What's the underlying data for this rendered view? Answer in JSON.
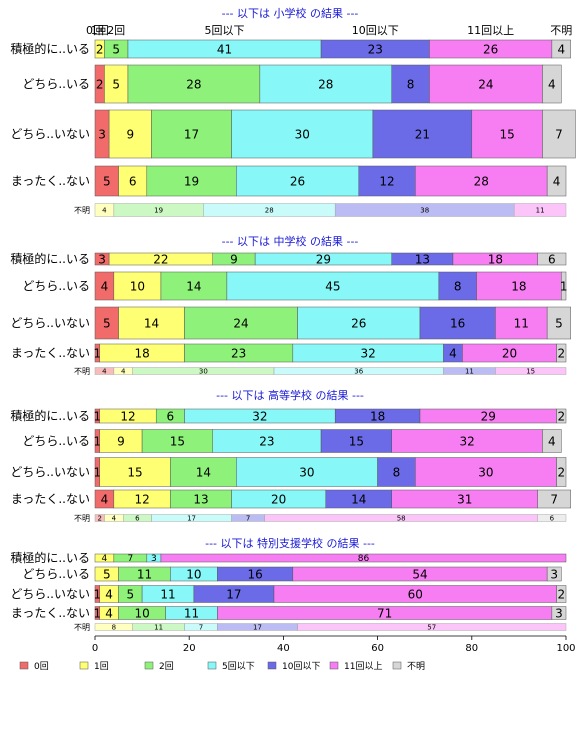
{
  "chart_data": {
    "type": "bar",
    "orientation": "horizontal-stacked",
    "xlim": [
      0,
      100
    ],
    "xticks": [
      "0",
      "20",
      "40",
      "60",
      "80",
      "100"
    ],
    "categories": [
      "0回",
      "1回",
      "2回",
      "5回以下",
      "10回以下",
      "11回以上",
      "不明"
    ],
    "colors": [
      "#f26b6b",
      "#ffff73",
      "#8ef27a",
      "#87f7f7",
      "#6b6be8",
      "#f77ef2",
      "#d6d6d6"
    ],
    "top_category_labels": [
      "0回",
      "1回",
      "2回",
      "5回以下",
      "10回以下",
      "11回以上",
      "不明"
    ],
    "panels": [
      {
        "title": "--- 以下は 小学校 の結果 ---",
        "rows": [
          {
            "label": "積極的に..いる",
            "values": [
              0,
              2,
              5,
              41,
              23,
              26,
              4
            ]
          },
          {
            "label": "どちら..いる",
            "values": [
              2,
              5,
              28,
              28,
              8,
              24,
              4
            ]
          },
          {
            "label": "どちら..いない",
            "values": [
              3,
              9,
              17,
              30,
              21,
              15,
              7
            ]
          },
          {
            "label": "まったく..ない",
            "values": [
              5,
              6,
              19,
              26,
              12,
              28,
              4
            ]
          },
          {
            "label": "不明",
            "small": true,
            "values": [
              0,
              4,
              19,
              28,
              38,
              11,
              0
            ]
          }
        ]
      },
      {
        "title": "--- 以下は 中学校 の結果 ---",
        "rows": [
          {
            "label": "積極的に..いる",
            "values": [
              3,
              22,
              9,
              29,
              13,
              18,
              6
            ]
          },
          {
            "label": "どちら..いる",
            "values": [
              4,
              10,
              14,
              45,
              8,
              18,
              1
            ]
          },
          {
            "label": "どちら..いない",
            "values": [
              5,
              14,
              24,
              26,
              16,
              11,
              5
            ]
          },
          {
            "label": "まったく..ない",
            "values": [
              1,
              18,
              23,
              32,
              4,
              20,
              2
            ]
          },
          {
            "label": "不明",
            "small": true,
            "values": [
              4,
              4,
              30,
              36,
              11,
              15,
              0
            ]
          }
        ]
      },
      {
        "title": "--- 以下は 高等学校 の結果 ---",
        "rows": [
          {
            "label": "積極的に..いる",
            "values": [
              1,
              12,
              6,
              32,
              18,
              29,
              2
            ]
          },
          {
            "label": "どちら..いる",
            "values": [
              1,
              9,
              15,
              23,
              15,
              32,
              4
            ]
          },
          {
            "label": "どちら..いない",
            "values": [
              1,
              15,
              14,
              30,
              8,
              30,
              2
            ]
          },
          {
            "label": "まったく..ない",
            "values": [
              4,
              12,
              13,
              20,
              14,
              31,
              7
            ]
          },
          {
            "label": "不明",
            "small": true,
            "values": [
              2,
              4,
              6,
              17,
              7,
              58,
              6
            ]
          }
        ]
      },
      {
        "title": "--- 以下は 特別支援学校 の結果 ---",
        "rows": [
          {
            "label": "積極的に..いる",
            "values": [
              0,
              4,
              7,
              3,
              0,
              86,
              0
            ]
          },
          {
            "label": "どちら..いる",
            "values": [
              0,
              5,
              11,
              10,
              16,
              54,
              3
            ]
          },
          {
            "label": "どちら..いない",
            "values": [
              1,
              4,
              5,
              11,
              17,
              60,
              2
            ]
          },
          {
            "label": "まったく..ない",
            "values": [
              1,
              4,
              10,
              11,
              0,
              71,
              3
            ]
          },
          {
            "label": "不明",
            "small": true,
            "values": [
              0,
              8,
              11,
              7,
              17,
              57,
              0
            ]
          }
        ]
      }
    ],
    "legend": {
      "position": "bottom",
      "labels": [
        "0回",
        "1回",
        "2回",
        "5回以下",
        "10回以下",
        "11回以上",
        "不明"
      ]
    }
  }
}
